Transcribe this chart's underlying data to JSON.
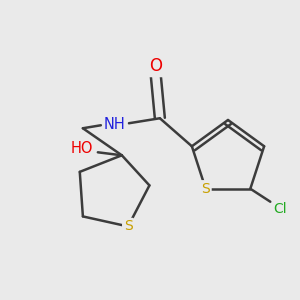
{
  "bg_color": "#eaeaea",
  "bond_color": "#3c3c3c",
  "atom_colors": {
    "O": "#ee0000",
    "N": "#2222dd",
    "S": "#c8a000",
    "Cl": "#22aa22",
    "C": "#3c3c3c"
  },
  "figsize": [
    3.0,
    3.0
  ],
  "dpi": 100,
  "bond_lw": 1.8,
  "font_size": 11
}
